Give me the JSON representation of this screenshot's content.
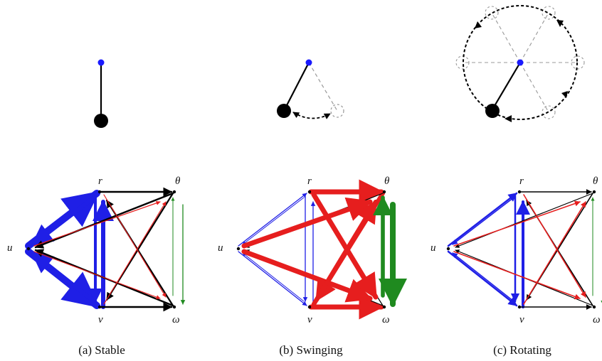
{
  "panels": [
    {
      "id": "a",
      "caption": "(a) Stable",
      "pendulum_state": "stable",
      "node_labels": {
        "u": "u",
        "v": "v",
        "r": "r",
        "theta": "θ",
        "omega": "ω"
      },
      "edge_colors": {
        "blue": "#1f1fe6",
        "black": "#000000",
        "red": "#e61e1e",
        "green": "#1f8a1f"
      }
    },
    {
      "id": "b",
      "caption": "(b) Swinging",
      "pendulum_state": "swinging",
      "node_labels": {
        "u": "u",
        "v": "v",
        "r": "r",
        "theta": "θ",
        "omega": "ω"
      },
      "edge_colors": {
        "blue": "#1f1fe6",
        "black": "#000000",
        "red": "#e61e1e",
        "green": "#1f8a1f"
      }
    },
    {
      "id": "c",
      "caption": "(c) Rotating",
      "pendulum_state": "rotating",
      "node_labels": {
        "u": "u",
        "v": "v",
        "r": "r",
        "theta": "θ",
        "omega": "ω"
      },
      "edge_colors": {
        "blue": "#1f1fe6",
        "black": "#000000",
        "red": "#e61e1e",
        "green": "#1f8a1f"
      }
    }
  ],
  "colors": {
    "pivot": "#1a1aff",
    "bob": "#000000",
    "ghost": "#999999"
  }
}
